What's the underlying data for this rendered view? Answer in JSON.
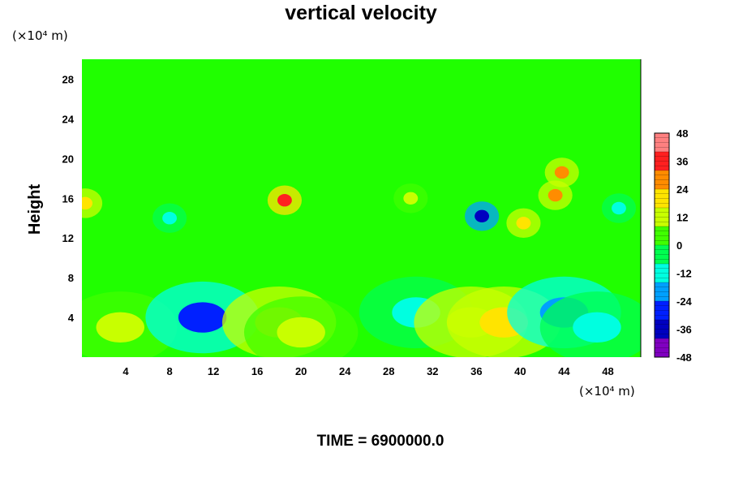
{
  "chart_data": {
    "type": "heatmap",
    "title": "vertical velocity",
    "xlabel": "",
    "ylabel": "Height",
    "x_unit_label": "(×10⁴ m)",
    "y_unit_label": "(×10⁴ m)",
    "footer": "TIME = 6900000.0",
    "x_range": [
      0,
      51
    ],
    "y_range": [
      0,
      30
    ],
    "x_ticks": [
      "4",
      "8",
      "12",
      "16",
      "20",
      "24",
      "28",
      "32",
      "36",
      "40",
      "44",
      "48"
    ],
    "y_ticks": [
      "4",
      "8",
      "12",
      "16",
      "20",
      "24",
      "28"
    ],
    "colorbar": {
      "range": [
        -48,
        48
      ],
      "tick_labels": [
        "48",
        "36",
        "24",
        "12",
        "0",
        "-12",
        "-24",
        "-36",
        "-48"
      ],
      "colors": [
        "#ff8080",
        "#ff2020",
        "#ff8c00",
        "#ffe400",
        "#c8ff00",
        "#40ff00",
        "#00ff50",
        "#00ffe0",
        "#00a0ff",
        "#0020ff",
        "#0000c0",
        "#8000c0"
      ]
    },
    "field_features": [
      {
        "x": 3.5,
        "y": 3,
        "value": 14
      },
      {
        "x": 11,
        "y": 4,
        "value": -26
      },
      {
        "x": 18,
        "y": 3.5,
        "value": 22
      },
      {
        "x": 20,
        "y": 2.5,
        "value": 12
      },
      {
        "x": 30.5,
        "y": 4.5,
        "value": -10
      },
      {
        "x": 35.5,
        "y": 3.5,
        "value": 16
      },
      {
        "x": 38.5,
        "y": 3.5,
        "value": 18
      },
      {
        "x": 44,
        "y": 4.5,
        "value": -22
      },
      {
        "x": 47,
        "y": 3,
        "value": -8
      },
      {
        "x": 0.3,
        "y": 15.5,
        "value": 20
      },
      {
        "x": 18.5,
        "y": 15.8,
        "value": 34
      },
      {
        "x": 30,
        "y": 16,
        "value": 14
      },
      {
        "x": 36.5,
        "y": 14.2,
        "value": -36
      },
      {
        "x": 40.3,
        "y": 13.5,
        "value": 20
      },
      {
        "x": 43.2,
        "y": 16.3,
        "value": 26
      },
      {
        "x": 43.8,
        "y": 18.6,
        "value": 26
      },
      {
        "x": 8,
        "y": 14,
        "value": -10
      },
      {
        "x": 49,
        "y": 15,
        "value": -14
      }
    ]
  }
}
